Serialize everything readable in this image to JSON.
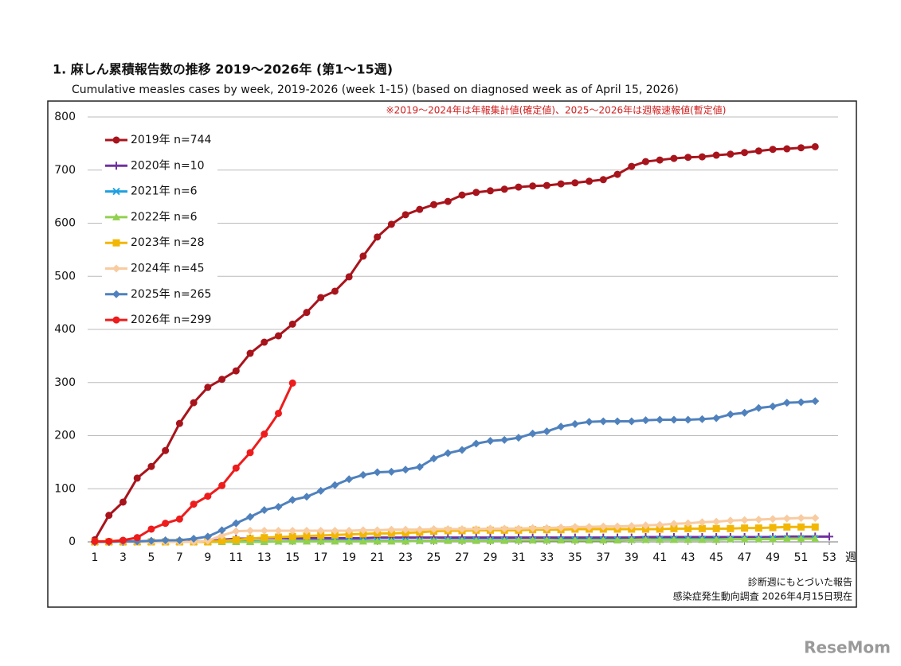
{
  "chart_data": {
    "type": "line",
    "title": "1. 麻しん累積報告数の推移  2019～2026年 (第1～15週)",
    "subtitle": "Cumulative measles cases by week, 2019-2026 (week 1-15)  (based on diagnosed week as of April 15, 2026)",
    "annotation": "※2019～2024年は年報集計値(確定値)、2025～2026年は週報速報値(暫定値)",
    "x_label": "週",
    "footnotes": [
      "診断週にもとづいた報告",
      "感染症発生動向調査 2026年4月15日現在"
    ],
    "watermark": "ReseMom",
    "x": [
      1,
      2,
      3,
      4,
      5,
      6,
      7,
      8,
      9,
      10,
      11,
      12,
      13,
      14,
      15,
      16,
      17,
      18,
      19,
      20,
      21,
      22,
      23,
      24,
      25,
      26,
      27,
      28,
      29,
      30,
      31,
      32,
      33,
      34,
      35,
      36,
      37,
      38,
      39,
      40,
      41,
      42,
      43,
      44,
      45,
      46,
      47,
      48,
      49,
      50,
      51,
      52,
      53
    ],
    "xlim": [
      1,
      53
    ],
    "xticks": [
      1,
      3,
      5,
      7,
      9,
      11,
      13,
      15,
      17,
      19,
      21,
      23,
      25,
      27,
      29,
      31,
      33,
      35,
      37,
      39,
      41,
      43,
      45,
      47,
      49,
      51,
      53
    ],
    "ylim": [
      0,
      800
    ],
    "yticks": [
      0,
      100,
      200,
      300,
      400,
      500,
      600,
      700,
      800
    ],
    "grid": true,
    "legend": "upper-left",
    "series": [
      {
        "name": "2019年 n=744",
        "color": "#a8141c",
        "marker": "circle",
        "values": [
          4,
          50,
          75,
          120,
          142,
          172,
          223,
          262,
          291,
          306,
          322,
          355,
          376,
          388,
          410,
          432,
          460,
          472,
          499,
          538,
          574,
          598,
          616,
          626,
          635,
          641,
          653,
          658,
          661,
          664,
          668,
          670,
          671,
          674,
          676,
          679,
          682,
          692,
          707,
          716,
          719,
          722,
          724,
          725,
          728,
          730,
          733,
          736,
          739,
          740,
          742,
          744,
          null
        ]
      },
      {
        "name": "2020年 n=10",
        "color": "#7030a0",
        "marker": "plus",
        "values": [
          0,
          0,
          0,
          1,
          1,
          1,
          1,
          1,
          1,
          4,
          6,
          6,
          7,
          7,
          7,
          7,
          7,
          7,
          7,
          7,
          8,
          8,
          8,
          8,
          8,
          8,
          8,
          8,
          8,
          8,
          8,
          8,
          8,
          8,
          8,
          8,
          8,
          8,
          8,
          9,
          9,
          9,
          9,
          9,
          9,
          9,
          9,
          9,
          9,
          10,
          10,
          10,
          10
        ]
      },
      {
        "name": "2021年 n=6",
        "color": "#1fa0e0",
        "marker": "x",
        "values": [
          0,
          0,
          0,
          0,
          0,
          0,
          0,
          0,
          0,
          1,
          1,
          1,
          1,
          1,
          2,
          2,
          2,
          2,
          2,
          2,
          2,
          2,
          2,
          2,
          2,
          3,
          3,
          3,
          3,
          3,
          3,
          3,
          3,
          4,
          4,
          4,
          4,
          4,
          4,
          4,
          5,
          5,
          5,
          5,
          5,
          5,
          5,
          5,
          6,
          6,
          6,
          6,
          null
        ]
      },
      {
        "name": "2022年 n=6",
        "color": "#92d050",
        "marker": "triangle",
        "values": [
          0,
          0,
          0,
          0,
          0,
          0,
          0,
          0,
          0,
          0,
          0,
          0,
          0,
          1,
          1,
          1,
          1,
          1,
          1,
          1,
          1,
          1,
          1,
          2,
          2,
          2,
          2,
          2,
          2,
          2,
          3,
          3,
          3,
          3,
          3,
          3,
          3,
          3,
          4,
          4,
          4,
          4,
          4,
          4,
          4,
          5,
          5,
          5,
          5,
          6,
          6,
          6,
          null
        ]
      },
      {
        "name": "2023年 n=28",
        "color": "#f2b705",
        "marker": "square",
        "values": [
          0,
          0,
          0,
          0,
          0,
          0,
          0,
          0,
          0,
          2,
          4,
          6,
          8,
          9,
          10,
          11,
          12,
          13,
          14,
          15,
          16,
          16,
          17,
          18,
          20,
          21,
          21,
          22,
          22,
          22,
          22,
          23,
          23,
          23,
          24,
          24,
          24,
          24,
          24,
          24,
          24,
          25,
          25,
          25,
          25,
          25,
          26,
          26,
          27,
          28,
          28,
          28,
          null
        ]
      },
      {
        "name": "2024年 n=45",
        "color": "#f8cba0",
        "marker": "diamond",
        "values": [
          0,
          0,
          0,
          0,
          0,
          0,
          0,
          0,
          2,
          12,
          20,
          21,
          21,
          21,
          21,
          21,
          21,
          21,
          21,
          22,
          22,
          23,
          23,
          23,
          24,
          24,
          24,
          24,
          25,
          25,
          25,
          26,
          26,
          27,
          28,
          28,
          29,
          29,
          30,
          31,
          32,
          34,
          35,
          37,
          38,
          40,
          41,
          42,
          43,
          44,
          45,
          45,
          null
        ]
      },
      {
        "name": "2025年 n=265",
        "color": "#4f81bd",
        "marker": "diamond",
        "values": [
          0,
          0,
          1,
          1,
          2,
          3,
          3,
          6,
          10,
          22,
          35,
          47,
          60,
          66,
          79,
          85,
          96,
          107,
          118,
          126,
          131,
          132,
          136,
          141,
          157,
          167,
          173,
          185,
          190,
          192,
          196,
          204,
          208,
          217,
          222,
          226,
          227,
          227,
          227,
          229,
          230,
          230,
          230,
          231,
          233,
          240,
          243,
          252,
          255,
          262,
          263,
          265,
          null
        ]
      },
      {
        "name": "2026年 n=299",
        "color": "#ee1c1c",
        "marker": "circle",
        "values": [
          1,
          1,
          3,
          8,
          24,
          35,
          43,
          71,
          86,
          106,
          139,
          168,
          203,
          242,
          299,
          null,
          null,
          null,
          null,
          null,
          null,
          null,
          null,
          null,
          null,
          null,
          null,
          null,
          null,
          null,
          null,
          null,
          null,
          null,
          null,
          null,
          null,
          null,
          null,
          null,
          null,
          null,
          null,
          null,
          null,
          null,
          null,
          null,
          null,
          null,
          null,
          null,
          null
        ]
      }
    ]
  }
}
